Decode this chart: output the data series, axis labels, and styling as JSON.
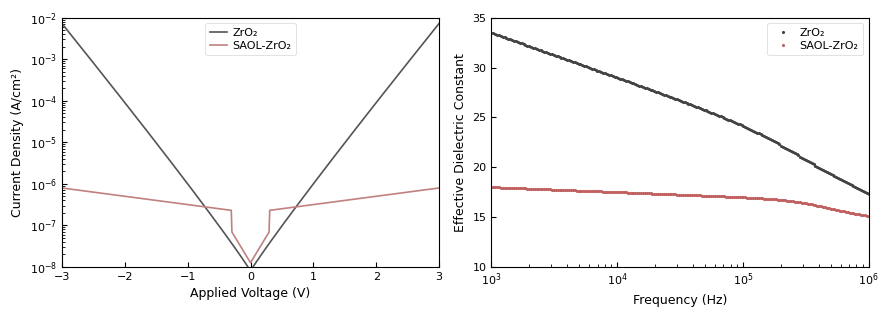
{
  "left_plot": {
    "title": "",
    "xlabel": "Applied Voltage (V)",
    "ylabel": "Current Density (A/cm²)",
    "xlim": [
      -3,
      3
    ],
    "ylim_log": [
      -8,
      -2
    ],
    "legend": [
      "ZrO₂",
      "SAOL-ZrO₂"
    ],
    "zro2_color": "#555555",
    "saol_color": "#c08080"
  },
  "right_plot": {
    "title": "",
    "xlabel": "Frequency (Hz)",
    "ylabel": "Effective Dielectric Constant",
    "xlim_log": [
      3,
      6
    ],
    "ylim": [
      10,
      35
    ],
    "legend": [
      "ZrO₂",
      "SAOL-ZrO₂"
    ],
    "zro2_color": "#444444",
    "saol_color": "#c06060"
  }
}
